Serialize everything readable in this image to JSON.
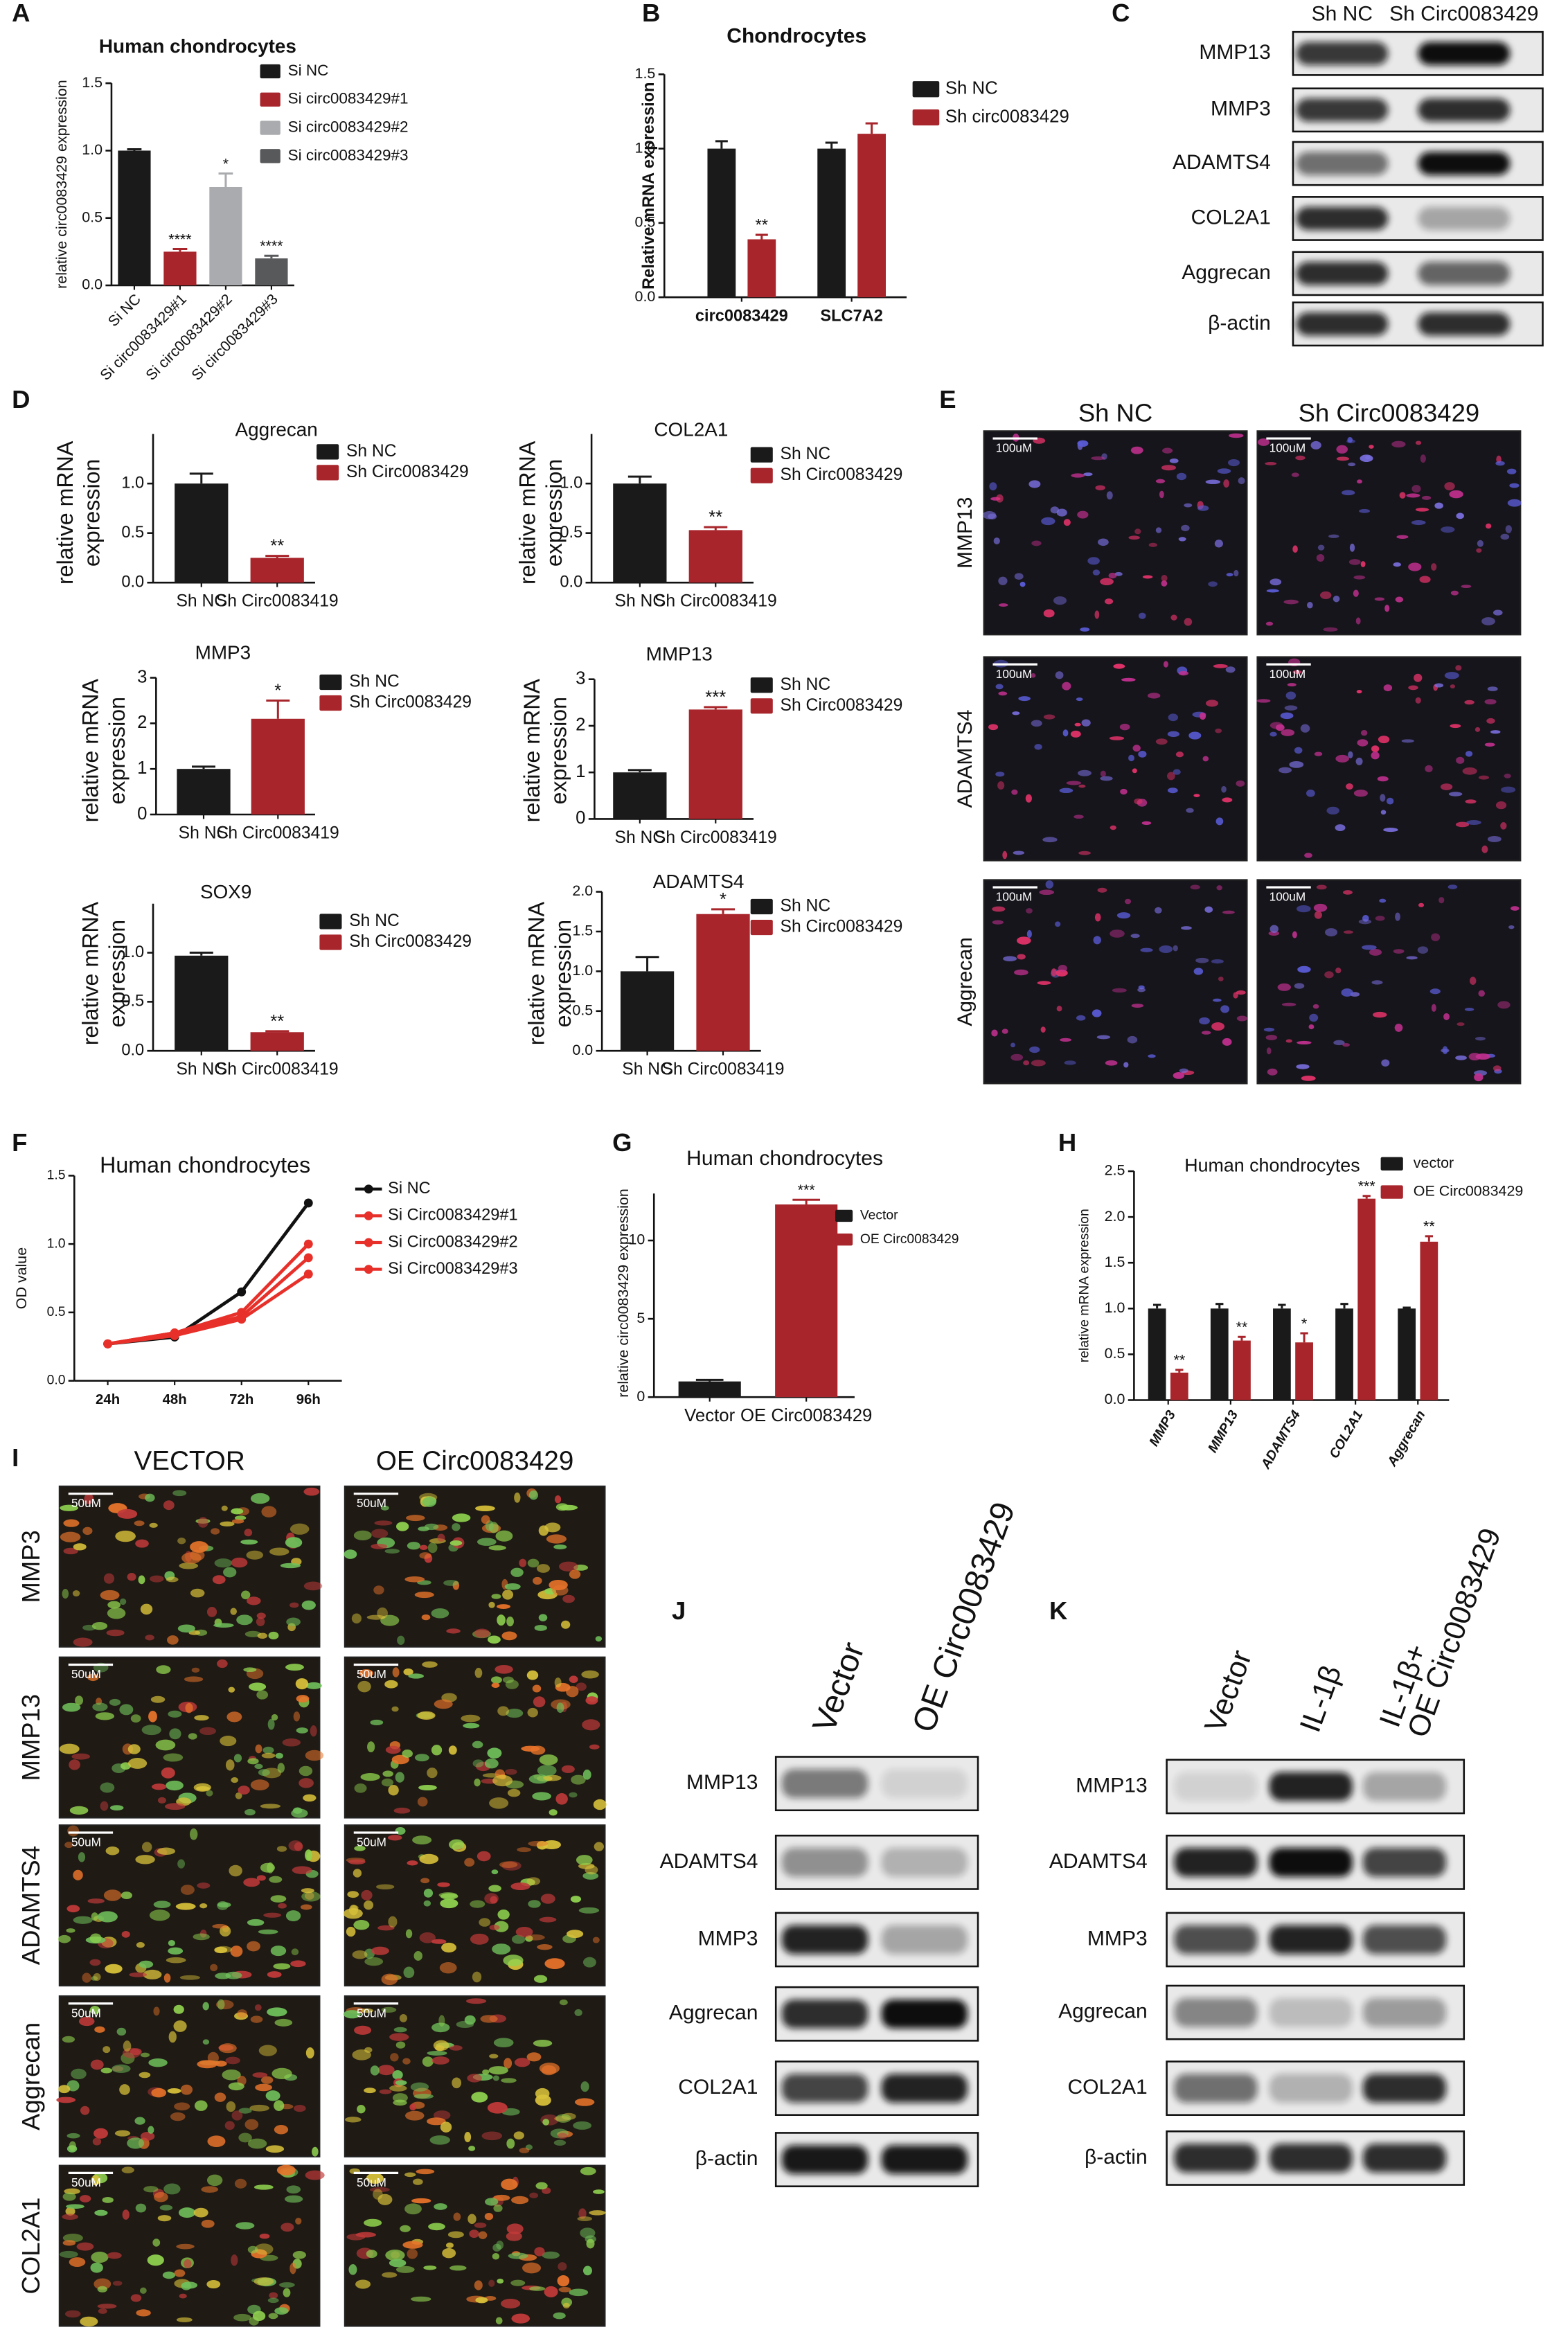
{
  "chart_data": [
    {
      "type": "bar",
      "panel": "A",
      "title": "Human chondrocytes",
      "ylabel": "relative  circ0083429 expression",
      "categories": [
        "Si NC",
        "Si circ0083429#1",
        "Si circ0083429#2",
        "Si circ0083429#3"
      ],
      "values": [
        1.0,
        0.25,
        0.73,
        0.2
      ],
      "errors": [
        0.01,
        0.02,
        0.1,
        0.02
      ],
      "annotations": [
        null,
        "****",
        "*",
        "****"
      ],
      "colors": [
        "#1a1a1a",
        "#a8252b",
        "#a9abae",
        "#58595b"
      ],
      "legend": [
        "Si NC",
        "Si circ0083429#1",
        "Si circ0083429#2",
        "Si circ0083429#3"
      ],
      "ylim": [
        0,
        1.5
      ],
      "yticks": [
        {
          "value": 0,
          "label": "0.0"
        },
        {
          "value": 0.5,
          "label": "0.5"
        },
        {
          "value": 1,
          "label": "1.0"
        },
        {
          "value": 1.5,
          "label": "1.5"
        }
      ]
    },
    {
      "type": "bar",
      "panel": "B",
      "title": "Chondrocytes",
      "ylabel": "Relative mRNA expression",
      "categories": [
        "circ0083429",
        "SLC7A2"
      ],
      "series": [
        {
          "name": "Sh NC",
          "color": "#1a1a1a",
          "values": [
            1.0,
            1.0
          ],
          "errors": [
            0.05,
            0.04
          ]
        },
        {
          "name": "Sh circ0083429",
          "color": "#a8252b",
          "values": [
            0.39,
            1.1
          ],
          "errors": [
            0.03,
            0.07
          ],
          "annotations": [
            "**",
            null
          ]
        }
      ],
      "ylim": [
        0,
        1.5
      ],
      "yticks": [
        {
          "value": 0,
          "label": "0.0"
        },
        {
          "value": 0.5,
          "label": "0.5"
        },
        {
          "value": 1,
          "label": "1.0"
        },
        {
          "value": 1.5,
          "label": "1.5"
        }
      ]
    },
    {
      "type": "bar",
      "panel": "D",
      "title": "Aggrecan",
      "ylabel": [
        "relative mRNA",
        "expression"
      ],
      "categories": [
        "Sh NC",
        "Sh Circ0083419"
      ],
      "values": [
        1.0,
        0.25
      ],
      "errors": [
        0.1,
        0.02
      ],
      "annotations": [
        null,
        "**"
      ],
      "colors": [
        "#1a1a1a",
        "#a8252b"
      ],
      "legend": [
        "Sh NC",
        "Sh Circ0083429"
      ],
      "ylim": [
        0,
        1.5
      ],
      "yticks": [
        {
          "value": 0,
          "label": "0.0"
        },
        {
          "value": 0.5,
          "label": "0.5"
        },
        {
          "value": 1,
          "label": "1.0"
        }
      ]
    },
    {
      "type": "bar",
      "title": "COL2A1",
      "ylabel": [
        "relative mRNA",
        "expression"
      ],
      "categories": [
        "Sh NC",
        "Sh Circ0083419"
      ],
      "values": [
        1.0,
        0.53
      ],
      "errors": [
        0.07,
        0.03
      ],
      "annotations": [
        null,
        "**"
      ],
      "colors": [
        "#1a1a1a",
        "#a8252b"
      ],
      "legend": [
        "Sh NC",
        "Sh Circ0083429"
      ],
      "ylim": [
        0,
        1.5
      ],
      "yticks": [
        {
          "value": 0,
          "label": "0.0"
        },
        {
          "value": 0.5,
          "label": "0.5"
        },
        {
          "value": 1,
          "label": "1.0"
        }
      ]
    },
    {
      "type": "bar",
      "title": "MMP3",
      "ylabel": [
        "relative mRNA",
        "expression"
      ],
      "categories": [
        "Sh NC",
        "Sh Circ0083419"
      ],
      "values": [
        1.0,
        2.1
      ],
      "errors": [
        0.05,
        0.4
      ],
      "annotations": [
        null,
        "*"
      ],
      "colors": [
        "#1a1a1a",
        "#a8252b"
      ],
      "legend": [
        "Sh NC",
        "Sh Circ0083429"
      ],
      "ylim": [
        0,
        3
      ],
      "yticks": [
        0,
        1,
        2,
        3
      ]
    },
    {
      "type": "bar",
      "title": "MMP13",
      "ylabel": [
        "relative mRNA",
        "expression"
      ],
      "categories": [
        "Sh NC",
        "Sh Circ0083419"
      ],
      "values": [
        1.0,
        2.35
      ],
      "errors": [
        0.05,
        0.05
      ],
      "annotations": [
        null,
        "***"
      ],
      "colors": [
        "#1a1a1a",
        "#a8252b"
      ],
      "legend": [
        "Sh NC",
        "Sh Circ0083429"
      ],
      "ylim": [
        0,
        3
      ],
      "yticks": [
        0,
        1,
        2,
        3
      ]
    },
    {
      "type": "bar",
      "title": "SOX9",
      "ylabel": [
        "relative mRNA",
        "expression"
      ],
      "categories": [
        "Sh NC",
        "Sh Circ0083419"
      ],
      "values": [
        0.97,
        0.19
      ],
      "errors": [
        0.03,
        0.01
      ],
      "annotations": [
        null,
        "**"
      ],
      "colors": [
        "#1a1a1a",
        "#a8252b"
      ],
      "legend": [
        "Sh NC",
        "Sh Circ0083429"
      ],
      "ylim": [
        0,
        1.5
      ],
      "yticks": [
        {
          "value": 0,
          "label": "0.0"
        },
        {
          "value": 0.5,
          "label": "0.5"
        },
        {
          "value": 1,
          "label": "1.0"
        }
      ]
    },
    {
      "type": "bar",
      "title": "ADAMTS4",
      "ylabel": [
        "relative mRNA",
        "expression"
      ],
      "categories": [
        "Sh NC",
        "Sh Circ0083419"
      ],
      "values": [
        1.0,
        1.72
      ],
      "errors": [
        0.18,
        0.06
      ],
      "annotations": [
        null,
        "*"
      ],
      "colors": [
        "#1a1a1a",
        "#a8252b"
      ],
      "legend": [
        "Sh NC",
        "Sh Circ0083429"
      ],
      "ylim": [
        0,
        2
      ],
      "yticks": [
        {
          "value": 0,
          "label": "0.0"
        },
        {
          "value": 0.5,
          "label": "0.5"
        },
        {
          "value": 1,
          "label": "1.0"
        },
        {
          "value": 1.5,
          "label": "1.5"
        },
        {
          "value": 2,
          "label": "2.0"
        }
      ]
    },
    {
      "type": "line",
      "panel": "F",
      "title": "Human chondrocytes",
      "ylabel": "OD value",
      "categories": [
        "24h",
        "48h",
        "72h",
        "96h"
      ],
      "series": [
        {
          "name": "Si NC",
          "color": "#111111",
          "values": [
            0.27,
            0.32,
            0.65,
            1.3
          ]
        },
        {
          "name": "Si Circ0083429#1",
          "color": "#e8302a",
          "values": [
            0.27,
            0.35,
            0.5,
            1.0
          ]
        },
        {
          "name": "Si Circ0083429#2",
          "color": "#e8302a",
          "values": [
            0.27,
            0.35,
            0.47,
            0.9
          ]
        },
        {
          "name": "Si Circ0083429#3",
          "color": "#e8302a",
          "values": [
            0.27,
            0.33,
            0.45,
            0.78
          ]
        }
      ],
      "ylim": [
        0,
        1.5
      ],
      "yticks": [
        {
          "value": 0,
          "label": "0.0"
        },
        {
          "value": 0.5,
          "label": "0.5"
        },
        {
          "value": 1,
          "label": "1.0"
        },
        {
          "value": 1.5,
          "label": "1.5"
        }
      ]
    },
    {
      "type": "bar",
      "panel": "G",
      "title": "Human chondrocytes",
      "ylabel": "relative  circ0083429 expression",
      "categories": [
        "Vector",
        "OE Circ0083429"
      ],
      "values": [
        1.0,
        12.3
      ],
      "errors": [
        0.1,
        0.3
      ],
      "annotations": [
        null,
        "***"
      ],
      "colors": [
        "#1a1a1a",
        "#a8252b"
      ],
      "legend": [
        "Vector",
        "OE Circ0083429"
      ],
      "ylim": [
        0,
        13
      ],
      "yticks": [
        0,
        5,
        10
      ]
    },
    {
      "type": "bar",
      "panel": "H",
      "title": "Human chondrocytes",
      "ylabel": "relative  mRNA expression",
      "categories": [
        "MMP3",
        "MMP13",
        "ADAMTS4",
        "COL2A1",
        "Aggrecan"
      ],
      "series": [
        {
          "name": "vector",
          "color": "#1a1a1a",
          "values": [
            1,
            1,
            1,
            1,
            1
          ],
          "errors": [
            0.04,
            0.05,
            0.04,
            0.05,
            0.01
          ]
        },
        {
          "name": "OE Circ0083429",
          "color": "#a8252b",
          "values": [
            0.3,
            0.65,
            0.63,
            2.2,
            1.73
          ],
          "errors": [
            0.03,
            0.04,
            0.1,
            0.03,
            0.06
          ],
          "annotations": [
            "**",
            "**",
            "*",
            "***",
            "**"
          ]
        }
      ],
      "ylim": [
        0,
        2.5
      ],
      "yticks": [
        {
          "value": 0,
          "label": "0.0"
        },
        {
          "value": 0.5,
          "label": "0.5"
        },
        {
          "value": 1,
          "label": "1.0"
        },
        {
          "value": 1.5,
          "label": "1.5"
        },
        {
          "value": 2,
          "label": "2.0"
        },
        {
          "value": 2.5,
          "label": "2.5"
        }
      ]
    }
  ],
  "blots": [
    {
      "panel": "C",
      "columns": [
        "Sh NC",
        "Sh Circ0083429"
      ],
      "rows": [
        "MMP13",
        "MMP3",
        "ADAMTS4",
        "COL2A1",
        "Aggrecan",
        "β-actin"
      ]
    },
    {
      "panel": "J",
      "columns": [
        "Vector",
        "OE Circ0083429"
      ],
      "rows": [
        "MMP13",
        "ADAMTS4",
        "MMP3",
        "Aggrecan",
        "COL2A1",
        "β-actin"
      ]
    },
    {
      "panel": "K",
      "columns": [
        "Vector",
        "IL-1β",
        [
          "IL-1β+",
          "OE Circ0083429"
        ]
      ],
      "rows": [
        "MMP13",
        "ADAMTS4",
        "MMP3",
        "Aggrecan",
        "COL2A1",
        "β-actin"
      ]
    }
  ],
  "images": [
    {
      "panel": "E",
      "columns": [
        "Sh NC",
        "Sh Circ0083429"
      ],
      "rows": [
        "MMP13",
        "ADAMTS4",
        "Aggrecan"
      ],
      "scale_bar": "100uM"
    },
    {
      "panel": "I",
      "columns": [
        "VECTOR",
        "OE Circ0083429"
      ],
      "rows": [
        "MMP3",
        "MMP13",
        "ADAMTS4",
        "Aggrecan",
        "COL2A1"
      ],
      "scale_bar": "50uM"
    }
  ]
}
